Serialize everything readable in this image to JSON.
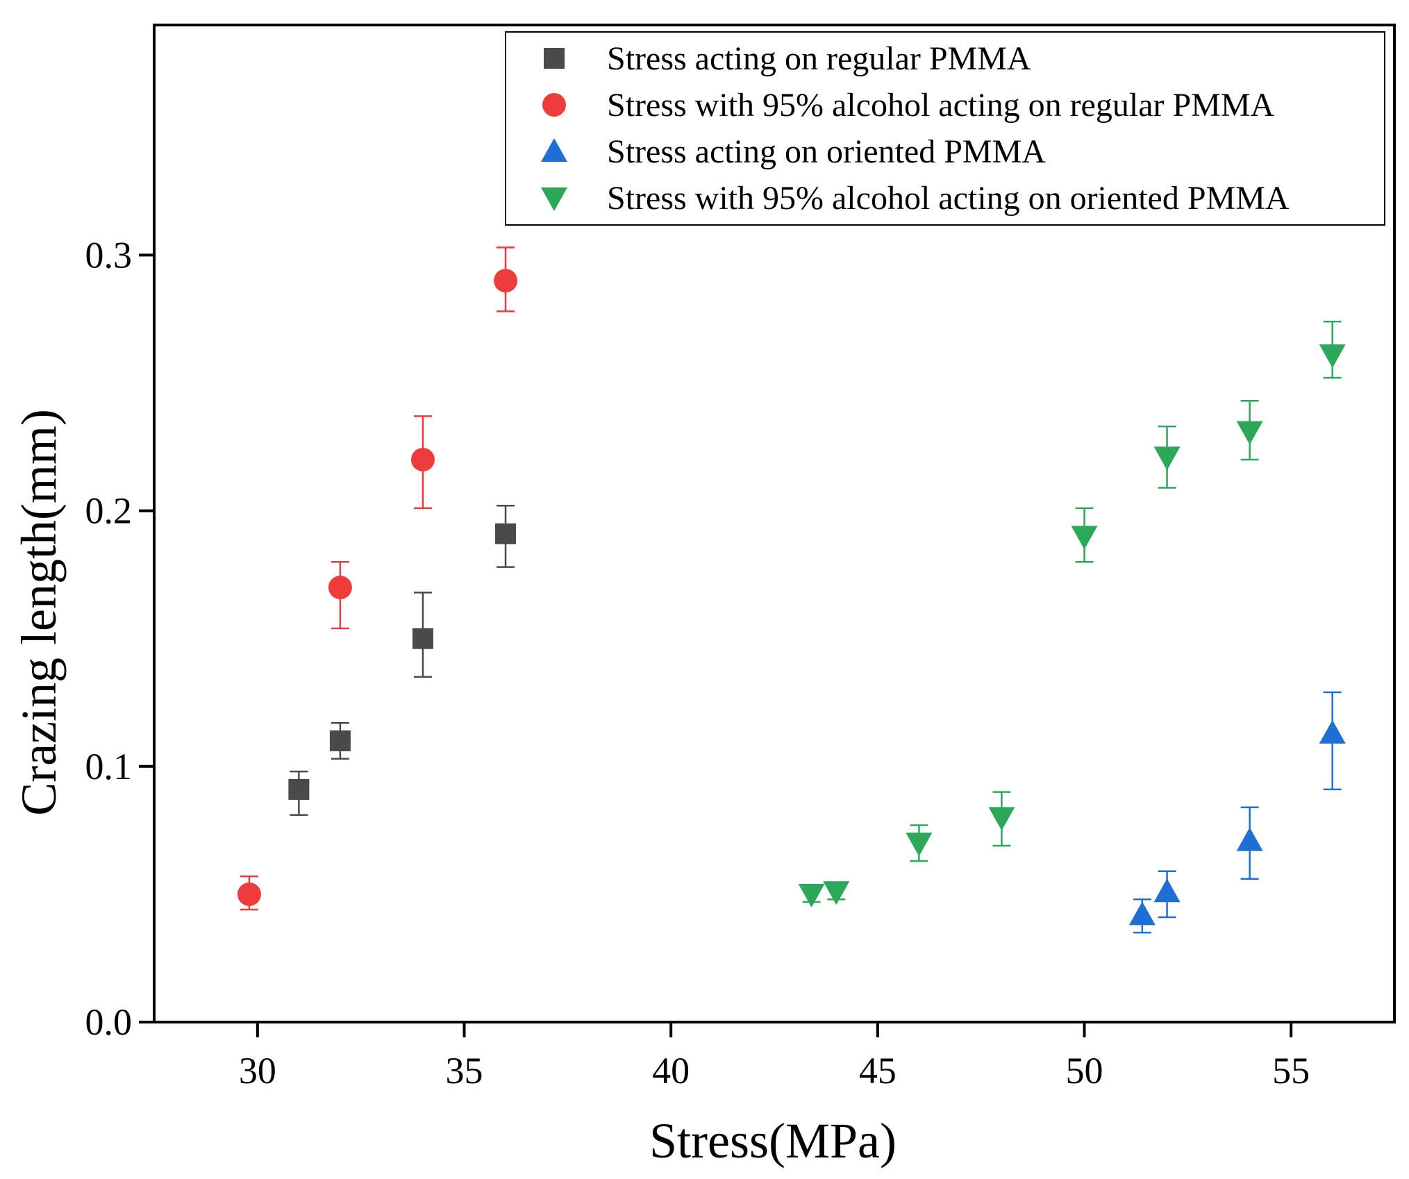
{
  "chart_data": {
    "type": "scatter",
    "xlabel": "Stress(MPa)",
    "ylabel": "Crazing length(mm)",
    "xlim": [
      27.5,
      57.5
    ],
    "ylim": [
      0,
      0.39
    ],
    "xticks": [
      30,
      35,
      40,
      45,
      50,
      55
    ],
    "xtick_labels": [
      "30",
      "35",
      "40",
      "45",
      "50",
      "55"
    ],
    "yticks": [
      0.0,
      0.1,
      0.2,
      0.3
    ],
    "ytick_labels": [
      "0.0",
      "0.1",
      "0.2",
      "0.3"
    ],
    "legend_position": "top-right",
    "series": [
      {
        "name": "Stress acting on regular PMMA",
        "marker": "square",
        "color": "#4a4a4a",
        "points": [
          {
            "x": 31,
            "y": 0.091,
            "err_low": 0.01,
            "err_high": 0.007
          },
          {
            "x": 32,
            "y": 0.11,
            "err_low": 0.007,
            "err_high": 0.007
          },
          {
            "x": 34,
            "y": 0.15,
            "err_low": 0.015,
            "err_high": 0.018
          },
          {
            "x": 36,
            "y": 0.191,
            "err_low": 0.013,
            "err_high": 0.011
          }
        ]
      },
      {
        "name": "Stress with 95% alcohol acting on regular PMMA",
        "marker": "circle",
        "color": "#ee3b3b",
        "points": [
          {
            "x": 29.8,
            "y": 0.05,
            "err_low": 0.006,
            "err_high": 0.007
          },
          {
            "x": 32,
            "y": 0.17,
            "err_low": 0.016,
            "err_high": 0.01
          },
          {
            "x": 34,
            "y": 0.22,
            "err_low": 0.019,
            "err_high": 0.017
          },
          {
            "x": 36,
            "y": 0.29,
            "err_low": 0.012,
            "err_high": 0.013
          }
        ]
      },
      {
        "name": "Stress acting on oriented PMMA",
        "marker": "triangle-up",
        "color": "#1f6ed4",
        "points": [
          {
            "x": 51.4,
            "y": 0.042,
            "err_low": 0.007,
            "err_high": 0.006
          },
          {
            "x": 52,
            "y": 0.051,
            "err_low": 0.01,
            "err_high": 0.008
          },
          {
            "x": 54,
            "y": 0.071,
            "err_low": 0.015,
            "err_high": 0.013
          },
          {
            "x": 56,
            "y": 0.113,
            "err_low": 0.022,
            "err_high": 0.016
          }
        ]
      },
      {
        "name": "Stress with 95% alcohol acting on oriented PMMA",
        "marker": "triangle-down",
        "color": "#2ca85a",
        "points": [
          {
            "x": 43.4,
            "y": 0.05,
            "err_low": 0.003,
            "err_high": 0.003
          },
          {
            "x": 44,
            "y": 0.051,
            "err_low": 0.003,
            "err_high": 0.003
          },
          {
            "x": 46,
            "y": 0.07,
            "err_low": 0.007,
            "err_high": 0.007
          },
          {
            "x": 48,
            "y": 0.08,
            "err_low": 0.011,
            "err_high": 0.01
          },
          {
            "x": 50,
            "y": 0.19,
            "err_low": 0.01,
            "err_high": 0.011
          },
          {
            "x": 52,
            "y": 0.221,
            "err_low": 0.012,
            "err_high": 0.012
          },
          {
            "x": 54,
            "y": 0.231,
            "err_low": 0.011,
            "err_high": 0.012
          },
          {
            "x": 56,
            "y": 0.261,
            "err_low": 0.009,
            "err_high": 0.013
          }
        ]
      }
    ]
  }
}
